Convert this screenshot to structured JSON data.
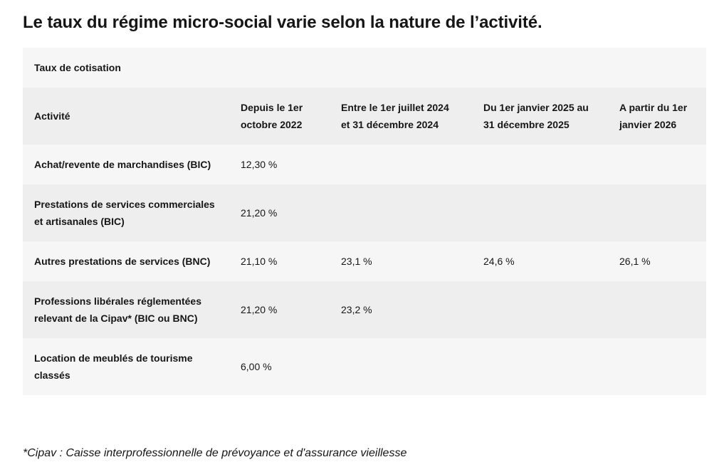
{
  "title": "Le taux du régime micro-social varie selon la nature de l’activité.",
  "table": {
    "caption": "Taux de cotisation",
    "headers": [
      "Activité",
      "Depuis le 1er octobre 2022",
      "Entre le 1er juillet 2024 et 31 décembre 2024",
      "Du 1er janvier 2025 au 31 décembre 2025",
      "A partir du 1er janvier 2026"
    ],
    "rows": [
      {
        "activity": "Achat/revente de marchandises (BIC)",
        "v1": "12,30 %",
        "v2": "",
        "v3": "",
        "v4": ""
      },
      {
        "activity": "Prestations de services commerciales et artisanales (BIC)",
        "v1": "21,20 %",
        "v2": "",
        "v3": "",
        "v4": ""
      },
      {
        "activity": "Autres prestations de services (BNC)",
        "v1": "21,10 %",
        "v2": "23,1 %",
        "v3": "24,6 %",
        "v4": "26,1 %"
      },
      {
        "activity": "Professions libérales réglementées relevant de la Cipav* (BIC ou BNC)",
        "v1": "21,20 %",
        "v2": "23,2 %",
        "v3": "",
        "v4": ""
      },
      {
        "activity": "Location de meublés de tourisme classés",
        "v1": "6,00 %",
        "v2": "",
        "v3": "",
        "v4": ""
      }
    ]
  },
  "footnote": "*Cipav : Caisse interprofessionnelle de prévoyance et d'assurance vieillesse"
}
